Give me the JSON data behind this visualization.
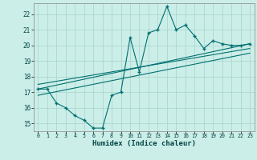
{
  "xlabel": "Humidex (Indice chaleur)",
  "bg_color": "#cceee8",
  "grid_color": "#aad8d0",
  "line_color": "#007070",
  "xlim": [
    -0.5,
    23.5
  ],
  "ylim": [
    14.5,
    22.7
  ],
  "xticks": [
    0,
    1,
    2,
    3,
    4,
    5,
    6,
    7,
    8,
    9,
    10,
    11,
    12,
    13,
    14,
    15,
    16,
    17,
    18,
    19,
    20,
    21,
    22,
    23
  ],
  "yticks": [
    15,
    16,
    17,
    18,
    19,
    20,
    21,
    22
  ],
  "main_x": [
    0,
    1,
    2,
    3,
    4,
    5,
    6,
    7,
    8,
    9,
    10,
    11,
    12,
    13,
    14,
    15,
    16,
    17,
    18,
    19,
    20,
    21,
    22,
    23
  ],
  "main_y": [
    17.2,
    17.2,
    16.3,
    16.0,
    15.5,
    15.2,
    14.7,
    14.7,
    16.8,
    17.0,
    20.5,
    18.3,
    20.8,
    21.0,
    22.5,
    21.0,
    21.3,
    20.6,
    19.8,
    20.3,
    20.1,
    20.0,
    20.0,
    20.1
  ],
  "line1_x": [
    0,
    23
  ],
  "line1_y": [
    17.5,
    19.8
  ],
  "line2_x": [
    0,
    23
  ],
  "line2_y": [
    17.2,
    20.1
  ],
  "line3_x": [
    0,
    23
  ],
  "line3_y": [
    16.8,
    19.5
  ]
}
